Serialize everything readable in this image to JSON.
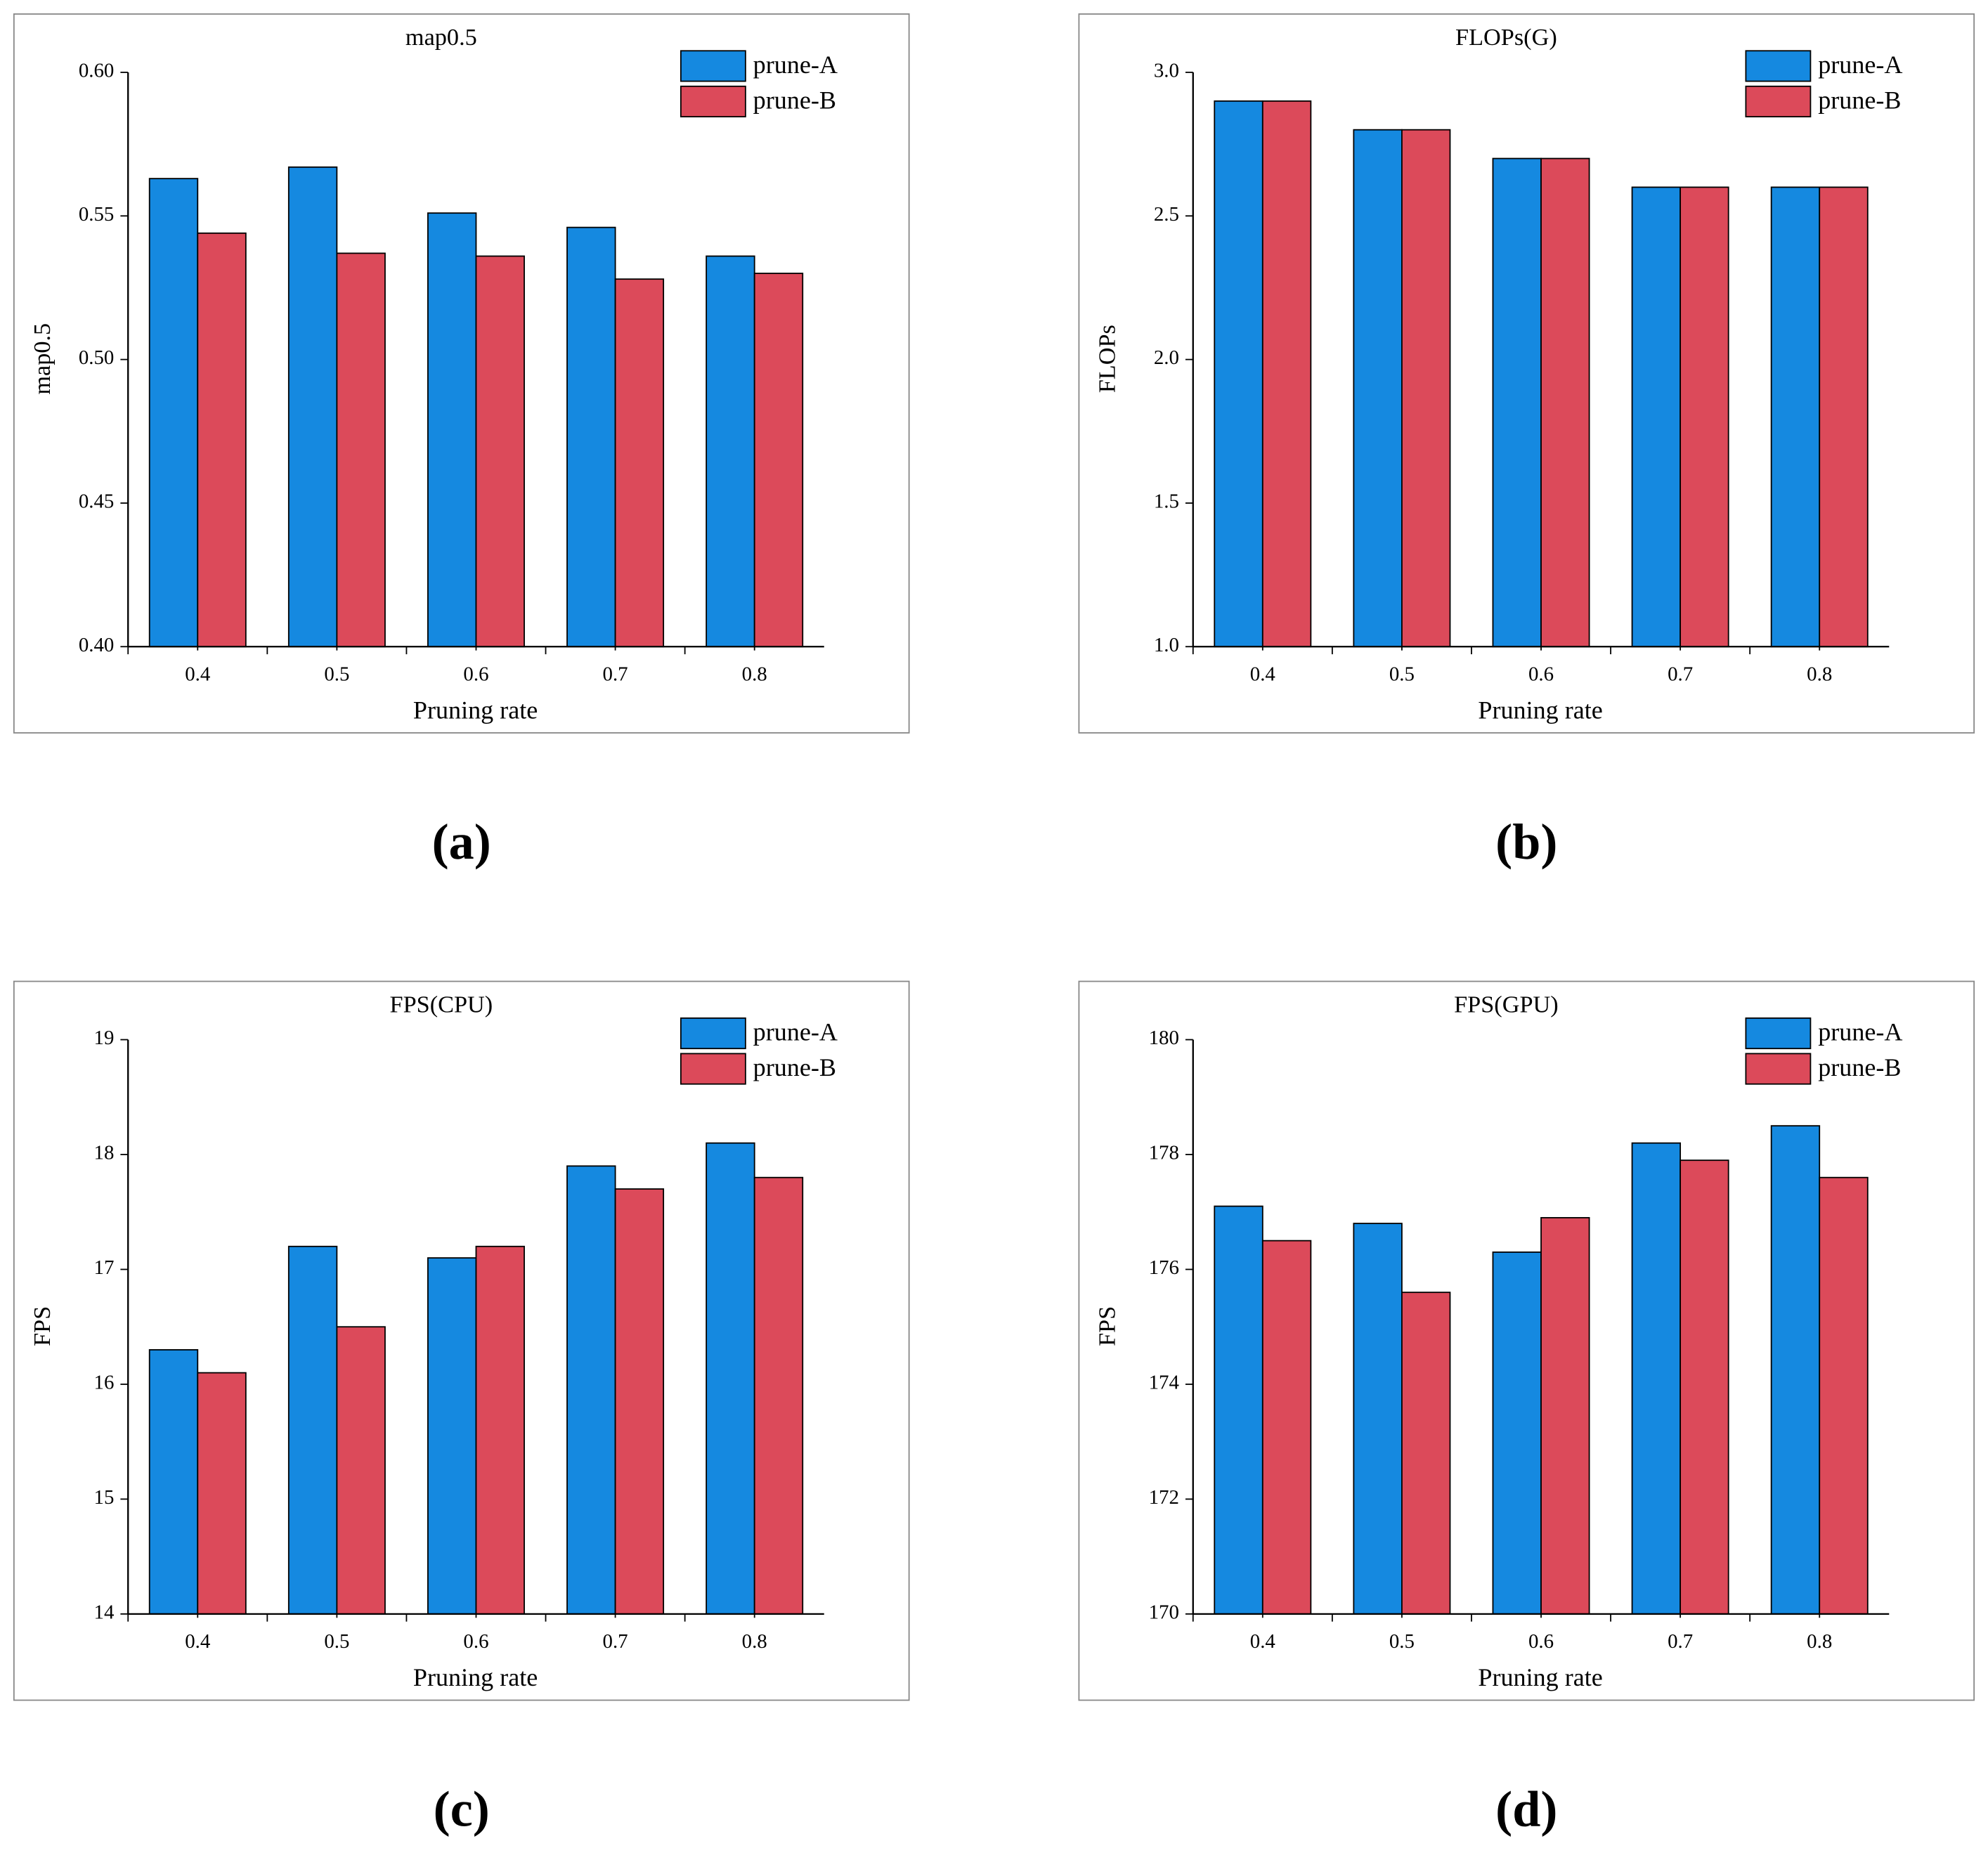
{
  "chart_data": [
    {
      "type": "bar",
      "title": "map0.5",
      "ylabel": "map0.5",
      "xlabel": "Pruning rate",
      "caption": "(a)",
      "categories": [
        "0.4",
        "0.5",
        "0.6",
        "0.7",
        "0.8"
      ],
      "series": [
        {
          "name": "prune-A",
          "color": "#1589e0",
          "values": [
            0.563,
            0.567,
            0.551,
            0.546,
            0.536
          ]
        },
        {
          "name": "prune-B",
          "color": "#dc4a5a",
          "values": [
            0.544,
            0.537,
            0.536,
            0.528,
            0.53
          ]
        }
      ],
      "ylim": [
        0.4,
        0.6
      ],
      "yticks": [
        {
          "value": 0.4,
          "label": "0.40"
        },
        0.45,
        {
          "value": 0.5,
          "label": "0.50"
        },
        0.55,
        {
          "value": 0.6,
          "label": "0.60"
        }
      ],
      "legend": "upper-right"
    },
    {
      "type": "bar",
      "title": "FLOPs(G)",
      "ylabel": "FLOPs",
      "xlabel": "Pruning rate",
      "caption": "(b)",
      "categories": [
        "0.4",
        "0.5",
        "0.6",
        "0.7",
        "0.8"
      ],
      "series": [
        {
          "name": "prune-A",
          "color": "#1589e0",
          "values": [
            2.9,
            2.8,
            2.7,
            2.6,
            2.6
          ]
        },
        {
          "name": "prune-B",
          "color": "#dc4a5a",
          "values": [
            2.9,
            2.8,
            2.7,
            2.6,
            2.6
          ]
        }
      ],
      "ylim": [
        1.0,
        3.0
      ],
      "yticks": [
        {
          "value": 1,
          "label": "1.0"
        },
        1.5,
        {
          "value": 2,
          "label": "2.0"
        },
        2.5,
        {
          "value": 3,
          "label": "3.0"
        }
      ],
      "legend": "upper-right"
    },
    {
      "type": "bar",
      "title": "FPS(CPU)",
      "ylabel": "FPS",
      "xlabel": "Pruning rate",
      "caption": "(c)",
      "categories": [
        "0.4",
        "0.5",
        "0.6",
        "0.7",
        "0.8"
      ],
      "series": [
        {
          "name": "prune-A",
          "color": "#1589e0",
          "values": [
            16.3,
            17.2,
            17.1,
            17.9,
            18.1
          ]
        },
        {
          "name": "prune-B",
          "color": "#dc4a5a",
          "values": [
            16.1,
            16.5,
            17.2,
            17.7,
            17.8
          ]
        }
      ],
      "ylim": [
        14,
        19
      ],
      "yticks": [
        14,
        15,
        16,
        17,
        18,
        19
      ],
      "legend": "upper-right"
    },
    {
      "type": "bar",
      "title": "FPS(GPU)",
      "ylabel": "FPS",
      "xlabel": "Pruning rate",
      "caption": "(d)",
      "categories": [
        "0.4",
        "0.5",
        "0.6",
        "0.7",
        "0.8"
      ],
      "series": [
        {
          "name": "prune-A",
          "color": "#1589e0",
          "values": [
            177.1,
            176.8,
            176.3,
            178.2,
            178.5
          ]
        },
        {
          "name": "prune-B",
          "color": "#dc4a5a",
          "values": [
            176.5,
            175.6,
            176.9,
            177.9,
            177.6
          ]
        }
      ],
      "ylim": [
        170,
        180
      ],
      "yticks": [
        170,
        172,
        174,
        176,
        178,
        180
      ],
      "legend": "upper-right"
    }
  ]
}
